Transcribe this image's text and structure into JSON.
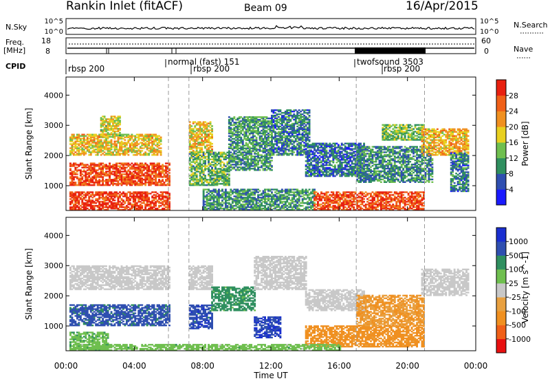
{
  "header": {
    "title": "Rankin Inlet (fitACF)",
    "beam": "Beam 09",
    "date": "16/Apr/2015"
  },
  "status_panels": {
    "nsky_label": "N.Sky",
    "nsearch_label": "N.Search",
    "nsky_ticks": [
      "10^5",
      "10^0"
    ],
    "nsearch_ticks": [
      "10^5",
      "10^0"
    ],
    "freq_label_1": "Freq.",
    "freq_label_2": "[MHz]",
    "freq_ticks": [
      "18",
      "8"
    ],
    "nave_label": "Nave",
    "nave_ticks": [
      "60",
      "0"
    ],
    "cpid_label": "CPID",
    "cpid_segments": [
      {
        "label": "rbsp 200",
        "start_hour": 0.0
      },
      {
        "label": "normal (fast) 151",
        "start_hour": 6.0
      },
      {
        "label": "rbsp 200",
        "start_hour": 7.2
      },
      {
        "label": "twofsound 3503",
        "start_hour": 17.0
      },
      {
        "label": "rbsp 200",
        "start_hour": 18.9
      }
    ]
  },
  "x_axis": {
    "label": "Time UT",
    "ticks": [
      "00:00",
      "04:00",
      "08:00",
      "12:00",
      "16:00",
      "20:00",
      "00:00"
    ]
  },
  "chart_data": [
    {
      "type": "heatmap",
      "name": "power",
      "ylabel": "Slant Range [km]",
      "y_ticks": [
        "1000",
        "2000",
        "3000",
        "4000"
      ],
      "ylim": [
        180,
        4600
      ],
      "xlim": [
        0,
        24
      ],
      "colorbar_label": "Power [dB]",
      "colorbar_ticks": [
        "4",
        "8",
        "12",
        "16",
        "20",
        "24",
        "28"
      ],
      "colors": [
        "#1a1aff",
        "#2f4fb0",
        "#2f8f5f",
        "#6fbf4f",
        "#e8d020",
        "#f09020",
        "#f06018",
        "#e82010"
      ],
      "range_min": 0,
      "range_max": 30,
      "regions": [
        {
          "t0": 0.2,
          "t1": 6.0,
          "r0": 180,
          "r1": 800,
          "value": 27
        },
        {
          "t0": 0.2,
          "t1": 6.0,
          "r0": 1000,
          "r1": 1750,
          "value": 26
        },
        {
          "t0": 0.2,
          "t1": 5.5,
          "r0": 2000,
          "r1": 2700,
          "value": 18
        },
        {
          "t0": 2.0,
          "t1": 3.2,
          "r0": 2600,
          "r1": 3300,
          "value": 16
        },
        {
          "t0": 7.2,
          "t1": 8.5,
          "r0": 2100,
          "r1": 3100,
          "value": 18
        },
        {
          "t0": 7.2,
          "t1": 9.5,
          "r0": 1000,
          "r1": 2100,
          "value": 12
        },
        {
          "t0": 9.5,
          "t1": 12.0,
          "r0": 1500,
          "r1": 3300,
          "value": 10
        },
        {
          "t0": 12.0,
          "t1": 14.2,
          "r0": 2000,
          "r1": 3500,
          "value": 8
        },
        {
          "t0": 8.0,
          "t1": 14.5,
          "r0": 180,
          "r1": 900,
          "value": 10
        },
        {
          "t0": 14.0,
          "t1": 17.5,
          "r0": 1300,
          "r1": 2400,
          "value": 7
        },
        {
          "t0": 14.5,
          "t1": 21.0,
          "r0": 180,
          "r1": 800,
          "value": 26
        },
        {
          "t0": 17.0,
          "t1": 21.5,
          "r0": 1100,
          "r1": 2300,
          "value": 9
        },
        {
          "t0": 18.5,
          "t1": 21.0,
          "r0": 2500,
          "r1": 3000,
          "value": 13
        },
        {
          "t0": 20.8,
          "t1": 23.6,
          "r0": 2000,
          "r1": 2900,
          "value": 19
        },
        {
          "t0": 22.5,
          "t1": 23.6,
          "r0": 800,
          "r1": 2100,
          "value": 8
        }
      ]
    },
    {
      "type": "heatmap",
      "name": "velocity",
      "ylabel": "Slant Range [km]",
      "y_ticks": [
        "1000",
        "2000",
        "3000",
        "4000"
      ],
      "ylim": [
        180,
        4600
      ],
      "xlim": [
        0,
        24
      ],
      "colorbar_label": "Velocity [m s^-1]",
      "colorbar_ticks": [
        "-1000",
        "-500",
        "-100",
        "-25",
        "25",
        "100",
        "500",
        "1000"
      ],
      "colors": [
        "#e81010",
        "#f06018",
        "#f09020",
        "#e8a040",
        "#c8c8c8",
        "#6fbf4f",
        "#2f8f5f",
        "#2f4fb0",
        "#1a2fd0"
      ],
      "regions": [
        {
          "t0": 0.2,
          "t1": 6.0,
          "r0": 1000,
          "r1": 1700,
          "value": 700
        },
        {
          "t0": 0.2,
          "t1": 6.0,
          "r0": 2200,
          "r1": 3000,
          "value": 0
        },
        {
          "t0": 0.2,
          "t1": 2.5,
          "r0": 180,
          "r1": 800,
          "value": 80
        },
        {
          "t0": 7.2,
          "t1": 8.5,
          "r0": 2200,
          "r1": 3000,
          "value": 0
        },
        {
          "t0": 7.2,
          "t1": 8.5,
          "r0": 900,
          "r1": 1700,
          "value": 800
        },
        {
          "t0": 8.5,
          "t1": 11.0,
          "r0": 1500,
          "r1": 2300,
          "value": 150
        },
        {
          "t0": 11.0,
          "t1": 14.0,
          "r0": 2200,
          "r1": 3300,
          "value": 0
        },
        {
          "t0": 11.0,
          "t1": 12.5,
          "r0": 600,
          "r1": 1300,
          "value": 900
        },
        {
          "t0": 14.0,
          "t1": 17.5,
          "r0": 1500,
          "r1": 2200,
          "value": 0
        },
        {
          "t0": 14.0,
          "t1": 21.0,
          "r0": 300,
          "r1": 1000,
          "value": -150
        },
        {
          "t0": 17.0,
          "t1": 21.0,
          "r0": 1000,
          "r1": 2000,
          "value": -100
        },
        {
          "t0": 20.8,
          "t1": 23.6,
          "r0": 2000,
          "r1": 2900,
          "value": 0
        },
        {
          "t0": 0.5,
          "t1": 16.0,
          "r0": 180,
          "r1": 400,
          "value": 60
        }
      ]
    }
  ]
}
